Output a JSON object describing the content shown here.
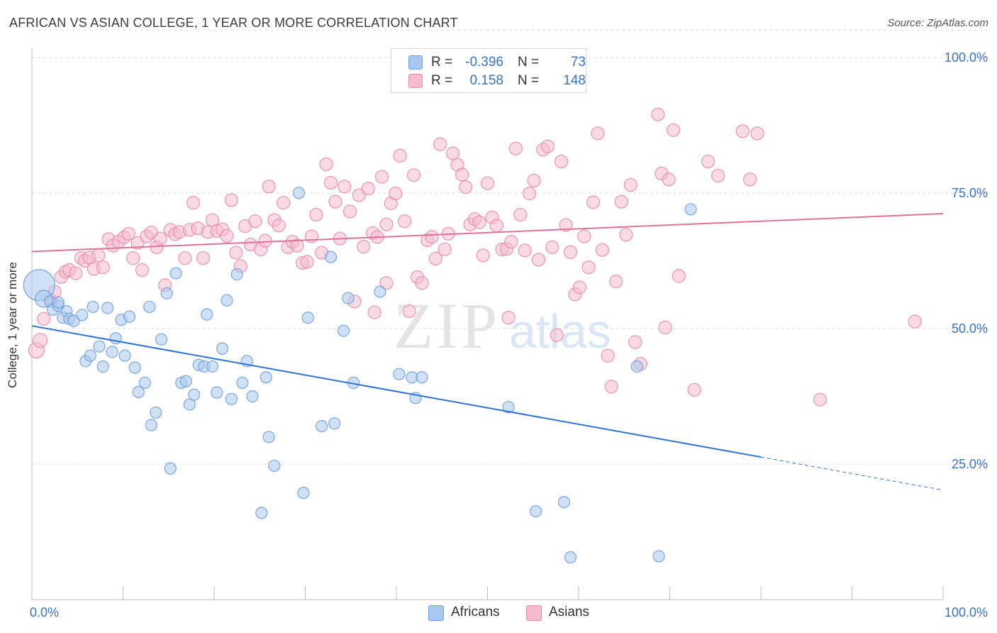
{
  "title": "AFRICAN VS ASIAN COLLEGE, 1 YEAR OR MORE CORRELATION CHART",
  "source": "Source: ZipAtlas.com",
  "watermark": {
    "zip": "ZIP",
    "atlas": "atlas"
  },
  "legend": {
    "africans": {
      "r_label": "R =",
      "r_value": "-0.396",
      "n_label": "N =",
      "n_value": "73"
    },
    "asians": {
      "r_label": "R =",
      "r_value": "0.158",
      "n_label": "N =",
      "n_value": "148"
    }
  },
  "colors": {
    "africans_fill": "#a9c8ef",
    "africans_stroke": "#6c9fdd",
    "africans_line": "#2f73d1",
    "asians_fill": "#f6bccd",
    "asians_stroke": "#e88aa8",
    "asians_line": "#e0729a",
    "axis_text": "#3a72c4",
    "grid": "#d9d9d9"
  },
  "chart_data": {
    "type": "scatter",
    "title": "AFRICAN VS ASIAN COLLEGE, 1 YEAR OR MORE CORRELATION CHART",
    "xlabel": "",
    "ylabel": "College, 1 year or more",
    "xlim": [
      0,
      100
    ],
    "ylim": [
      0,
      105
    ],
    "x_tick_labels": [
      {
        "value": 0,
        "label": "0.0%"
      },
      {
        "value": 100,
        "label": "100.0%"
      }
    ],
    "y_tick_labels": [
      {
        "value": 25,
        "label": "25.0%"
      },
      {
        "value": 50,
        "label": "50.0%"
      },
      {
        "value": 75,
        "label": "75.0%"
      },
      {
        "value": 100,
        "label": "100.0%"
      }
    ],
    "x_minor_ticks": [
      0,
      10,
      20,
      30,
      40,
      50,
      60,
      70,
      80,
      90,
      100
    ],
    "grid": true,
    "series": [
      {
        "name": "Africans",
        "r": -0.396,
        "n": 73,
        "trend": {
          "x1": 0,
          "y1": 50.5,
          "x2": 80,
          "y2": 26.3,
          "dash_to_x": 100,
          "dash_to_y": 20.2
        },
        "points": [
          [
            0.8,
            58,
            22
          ],
          [
            1.3,
            55.5,
            12
          ],
          [
            2,
            55,
            8
          ],
          [
            2.3,
            53.5,
            8
          ],
          [
            2.9,
            54.2,
            8
          ],
          [
            3.4,
            52,
            8
          ],
          [
            3.8,
            53.2,
            8
          ],
          [
            4.1,
            51.8,
            8
          ],
          [
            4.6,
            51.4,
            8
          ],
          [
            5.5,
            52.5,
            8
          ],
          [
            5.9,
            44,
            8
          ],
          [
            6.4,
            45,
            8
          ],
          [
            6.7,
            54,
            8
          ],
          [
            7.4,
            46.7,
            8
          ],
          [
            7.8,
            43,
            8
          ],
          [
            8.3,
            53.8,
            8
          ],
          [
            8.8,
            45.7,
            8
          ],
          [
            9.2,
            48.2,
            8
          ],
          [
            9.8,
            51.6,
            8
          ],
          [
            10.2,
            45,
            8
          ],
          [
            10.7,
            52.2,
            8
          ],
          [
            11.3,
            42.8,
            8
          ],
          [
            11.7,
            38.3,
            8
          ],
          [
            12.4,
            40,
            8
          ],
          [
            12.9,
            54,
            8
          ],
          [
            13.1,
            32.2,
            8
          ],
          [
            13.6,
            34.5,
            8
          ],
          [
            14.2,
            48,
            8
          ],
          [
            14.8,
            56.5,
            8
          ],
          [
            15.2,
            24.2,
            8
          ],
          [
            15.8,
            60.2,
            8
          ],
          [
            16.4,
            40,
            8
          ],
          [
            16.9,
            40.3,
            8
          ],
          [
            17.3,
            36,
            8
          ],
          [
            17.8,
            37.8,
            8
          ],
          [
            18.3,
            43.3,
            8
          ],
          [
            18.9,
            43,
            8
          ],
          [
            19.2,
            52.6,
            8
          ],
          [
            19.8,
            43,
            8
          ],
          [
            20.3,
            38.2,
            8
          ],
          [
            20.9,
            46.3,
            8
          ],
          [
            21.4,
            55.2,
            8
          ],
          [
            21.9,
            37,
            8
          ],
          [
            22.5,
            60,
            8
          ],
          [
            23.1,
            40,
            8
          ],
          [
            23.6,
            44,
            8
          ],
          [
            24.2,
            37.5,
            8
          ],
          [
            25.2,
            16,
            8
          ],
          [
            25.7,
            41,
            8
          ],
          [
            26,
            30,
            8
          ],
          [
            26.6,
            24.7,
            8
          ],
          [
            29.3,
            75,
            8
          ],
          [
            29.8,
            19.7,
            8
          ],
          [
            30.3,
            52,
            8
          ],
          [
            31.8,
            32,
            8
          ],
          [
            32.8,
            63.2,
            8
          ],
          [
            33.2,
            32.5,
            8
          ],
          [
            34.2,
            49.6,
            8
          ],
          [
            34.7,
            55.6,
            8
          ],
          [
            35.3,
            40,
            8
          ],
          [
            38.2,
            56.8,
            8
          ],
          [
            40.3,
            41.6,
            8
          ],
          [
            41.7,
            41,
            8
          ],
          [
            42.1,
            37.2,
            8
          ],
          [
            42.8,
            41,
            8
          ],
          [
            52.3,
            35.5,
            8
          ],
          [
            55.3,
            16.3,
            8
          ],
          [
            58.4,
            18,
            8
          ],
          [
            59.1,
            7.8,
            8
          ],
          [
            66.4,
            43,
            8
          ],
          [
            68.8,
            8,
            8
          ],
          [
            72.3,
            72,
            8
          ],
          [
            2.9,
            54.8,
            8
          ]
        ]
      },
      {
        "name": "Asians",
        "r": 0.158,
        "n": 148,
        "trend": {
          "x1": 0,
          "y1": 64.2,
          "x2": 100,
          "y2": 71.2
        },
        "points": [
          [
            0.5,
            46,
            11
          ],
          [
            0.9,
            47.8,
            10
          ],
          [
            1.3,
            51.8,
            9
          ],
          [
            2.1,
            55.2,
            9
          ],
          [
            2.5,
            56.8,
            9
          ],
          [
            3.2,
            59.5,
            9
          ],
          [
            3.7,
            60.5,
            9
          ],
          [
            4.1,
            60.8,
            9
          ],
          [
            4.8,
            60.2,
            9
          ],
          [
            5.4,
            63,
            9
          ],
          [
            5.8,
            62.5,
            9
          ],
          [
            6.3,
            63.1,
            9
          ],
          [
            6.8,
            61,
            9
          ],
          [
            7.3,
            63.5,
            9
          ],
          [
            7.8,
            61.3,
            9
          ],
          [
            8.4,
            66.5,
            9
          ],
          [
            8.9,
            65.3,
            9
          ],
          [
            9.5,
            66,
            9
          ],
          [
            10.1,
            66.8,
            9
          ],
          [
            10.6,
            67.5,
            9
          ],
          [
            11.1,
            63,
            9
          ],
          [
            11.6,
            65.8,
            9
          ],
          [
            12.1,
            60.8,
            9
          ],
          [
            12.6,
            67,
            9
          ],
          [
            13.1,
            67.7,
            9
          ],
          [
            13.7,
            65,
            9
          ],
          [
            14.1,
            66.6,
            9
          ],
          [
            14.6,
            58,
            9
          ],
          [
            15.2,
            68.2,
            9
          ],
          [
            15.7,
            67.4,
            9
          ],
          [
            16.2,
            67.8,
            9
          ],
          [
            16.8,
            63,
            9
          ],
          [
            17.3,
            68.2,
            9
          ],
          [
            17.7,
            73.2,
            9
          ],
          [
            18.2,
            68.5,
            9
          ],
          [
            18.8,
            63,
            9
          ],
          [
            19.3,
            67.8,
            9
          ],
          [
            19.8,
            70,
            9
          ],
          [
            20.3,
            68,
            9
          ],
          [
            20.9,
            68.3,
            9
          ],
          [
            21.4,
            67.1,
            9
          ],
          [
            21.9,
            73.7,
            9
          ],
          [
            22.4,
            64,
            9
          ],
          [
            22.9,
            61.5,
            9
          ],
          [
            23.4,
            68.9,
            9
          ],
          [
            24,
            65.5,
            9
          ],
          [
            24.5,
            69.8,
            9
          ],
          [
            25.1,
            64.6,
            9
          ],
          [
            25.6,
            66.2,
            9
          ],
          [
            26,
            76.2,
            9
          ],
          [
            26.6,
            70,
            9
          ],
          [
            27.1,
            69,
            9
          ],
          [
            27.6,
            73.2,
            9
          ],
          [
            28.1,
            65,
            9
          ],
          [
            28.6,
            66,
            9
          ],
          [
            29.1,
            65.3,
            9
          ],
          [
            29.7,
            62.1,
            9
          ],
          [
            30.2,
            62.3,
            9
          ],
          [
            30.7,
            67,
            9
          ],
          [
            31.2,
            71,
            9
          ],
          [
            31.8,
            64,
            9
          ],
          [
            32.3,
            80.3,
            9
          ],
          [
            32.8,
            76.9,
            9
          ],
          [
            33.3,
            73.4,
            9
          ],
          [
            33.8,
            66.6,
            9
          ],
          [
            34.3,
            76.2,
            9
          ],
          [
            34.9,
            71.6,
            9
          ],
          [
            35.4,
            55,
            9
          ],
          [
            35.9,
            74.6,
            9
          ],
          [
            36.4,
            65.1,
            9
          ],
          [
            36.9,
            75.8,
            9
          ],
          [
            37.4,
            67.6,
            9
          ],
          [
            37.9,
            66.9,
            9
          ],
          [
            38.4,
            78,
            9
          ],
          [
            38.9,
            69.2,
            9
          ],
          [
            39.4,
            73.1,
            9
          ],
          [
            39.9,
            74.9,
            9
          ],
          [
            40.4,
            81.9,
            9
          ],
          [
            40.9,
            69.8,
            9
          ],
          [
            41.4,
            53.2,
            9
          ],
          [
            41.9,
            78.3,
            9
          ],
          [
            42.3,
            59.5,
            9
          ],
          [
            42.8,
            58.4,
            9
          ],
          [
            43.4,
            66.3,
            9
          ],
          [
            43.9,
            66.9,
            9
          ],
          [
            44.3,
            62.9,
            9
          ],
          [
            44.8,
            84,
            9
          ],
          [
            45.3,
            64.6,
            9
          ],
          [
            45.7,
            67.5,
            9
          ],
          [
            46.2,
            82.3,
            9
          ],
          [
            46.7,
            80.2,
            9
          ],
          [
            47.2,
            78.4,
            9
          ],
          [
            47.6,
            76.1,
            9
          ],
          [
            48.1,
            69.2,
            9
          ],
          [
            48.6,
            70.2,
            9
          ],
          [
            49.1,
            69.6,
            9
          ],
          [
            49.5,
            63.5,
            9
          ],
          [
            50,
            76.8,
            9
          ],
          [
            50.5,
            70.5,
            9
          ],
          [
            51,
            69,
            9
          ],
          [
            51.6,
            64.6,
            9
          ],
          [
            52.1,
            64.7,
            9
          ],
          [
            52.6,
            66,
            9
          ],
          [
            53.1,
            83.2,
            9
          ],
          [
            53.6,
            71,
            9
          ],
          [
            54.1,
            64.4,
            9
          ],
          [
            54.6,
            74.9,
            9
          ],
          [
            55.1,
            77.3,
            9
          ],
          [
            55.6,
            62.7,
            9
          ],
          [
            56.1,
            83,
            9
          ],
          [
            56.6,
            83.6,
            9
          ],
          [
            57.1,
            65,
            9
          ],
          [
            57.6,
            48.8,
            9
          ],
          [
            58.1,
            80.8,
            9
          ],
          [
            58.6,
            69.1,
            9
          ],
          [
            59.1,
            64.1,
            9
          ],
          [
            59.6,
            56.3,
            9
          ],
          [
            60.1,
            57.6,
            9
          ],
          [
            60.6,
            67,
            9
          ],
          [
            61.1,
            61.3,
            9
          ],
          [
            61.6,
            73.3,
            9
          ],
          [
            62.1,
            86,
            9
          ],
          [
            62.6,
            64.5,
            9
          ],
          [
            63.2,
            45,
            9
          ],
          [
            63.6,
            39.3,
            9
          ],
          [
            64.1,
            58.7,
            9
          ],
          [
            64.7,
            73.4,
            9
          ],
          [
            65.2,
            67.3,
            9
          ],
          [
            65.7,
            76.5,
            9
          ],
          [
            66.2,
            47.5,
            9
          ],
          [
            66.8,
            43.5,
            9
          ],
          [
            68.7,
            89.5,
            9
          ],
          [
            69.1,
            78.6,
            9
          ],
          [
            69.5,
            50.2,
            9
          ],
          [
            69.9,
            77.5,
            9
          ],
          [
            70.4,
            86.6,
            9
          ],
          [
            71,
            59.7,
            9
          ],
          [
            72.7,
            38.7,
            9
          ],
          [
            74.2,
            80.8,
            9
          ],
          [
            75.3,
            78.2,
            9
          ],
          [
            78,
            86.4,
            9
          ],
          [
            78.8,
            77.5,
            9
          ],
          [
            79.6,
            86,
            9
          ],
          [
            86.5,
            36.9,
            9
          ],
          [
            96.9,
            51.3,
            9
          ],
          [
            38.9,
            58.4,
            9
          ],
          [
            52.3,
            52,
            9
          ],
          [
            37.6,
            53,
            9
          ]
        ]
      }
    ]
  }
}
